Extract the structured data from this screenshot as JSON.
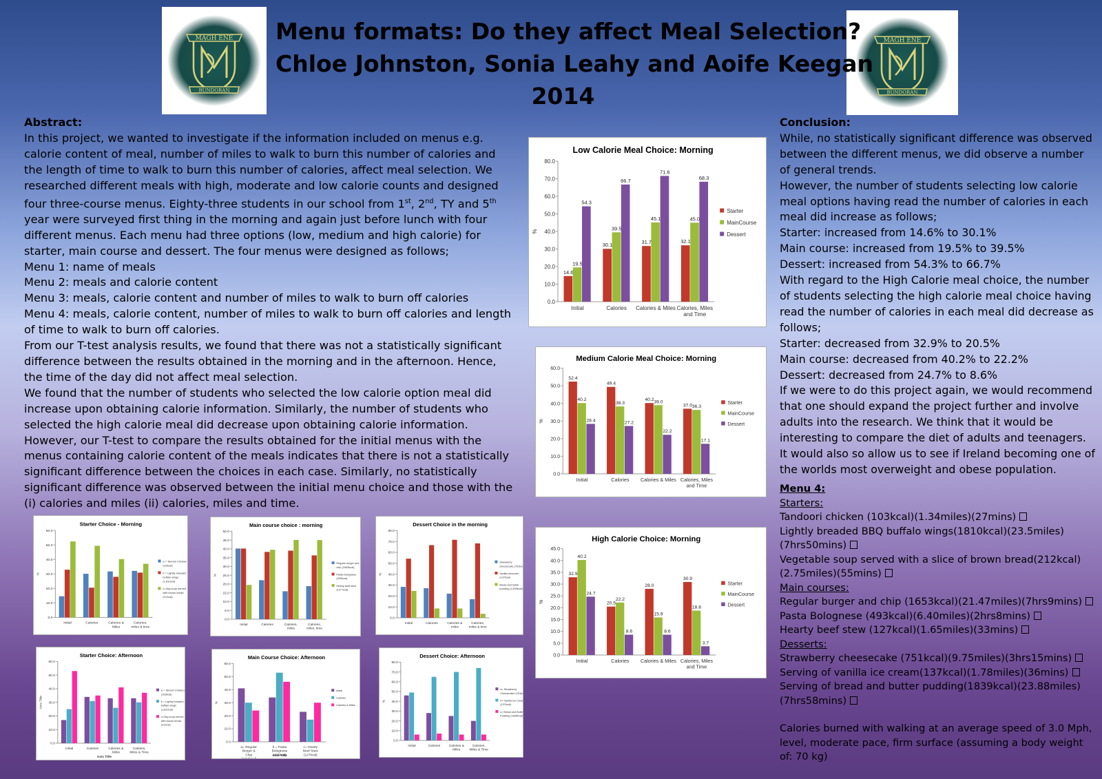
{
  "title": {
    "line1": "Menu formats: Do they affect Meal Selection?",
    "line2": "Chloe Johnston, Sonia Leahy and Aoife Keegan",
    "line3": "2014"
  },
  "logo": {
    "top_text": "MAGH ENE",
    "bottom_text": "BUNDORAN"
  },
  "abstract": {
    "heading": "Abstract:",
    "p1a": "In this project, we wanted to investigate if the information included on menus e.g. calorie content of meal, number of miles to walk to burn this number of calories and the length of time to walk to burn this number of calories, affect meal selection. We researched different meals with high, moderate and low calorie counts and designed four three-course menus. Eighty-three students in our school from 1",
    "sup1": "st",
    "p1b": ", 2",
    "sup2": "nd",
    "p1c": ", TY and 5",
    "sup3": "th",
    "p1d": " year were surveyed first thing in the morning and again just before lunch with four different menus. Each menu had three options (low, medium and high calorie) for starter, main course and dessert.  The four menus were designed as follows;",
    "menu1": "Menu 1:  name of meals",
    "menu2": "Menu 2:  meals and calorie content",
    "menu3": "Menu 3:  meals, calorie content and number of miles to walk to burn off calories",
    "menu4": "Menu 4:  meals, calorie content, number of miles to walk to burn off calories and length of time to walk to burn off calories.",
    "p2": "From our T-test analysis results, we found that there was not a statistically significant difference between the results obtained in the morning and in the afternoon. Hence, the time of the day did not affect meal selection.",
    "p3": "We found that the number of students who selected the low calorie option meal did increase upon obtaining calorie information.  Similarly, the number of students who selected the high calorie meal did decrease upon obtaining calorie information.  However, our T-test to compare the results obtained for the initial menus with the menus containing calorie content of the meals indicates that there is not a statistically significant difference between the choices in each case.  Similarly, no statistically significant difference was observed between the initial menu choice and those with the (i) calories and miles (ii) calories, miles and time."
  },
  "conclusion": {
    "heading": "Conclusion:",
    "p1": "While, no statistically significant difference was observed between the different menus, we did observe a number of general trends.",
    "p2": "However, the number of students selecting low calorie meal options having read the number of calories in each meal did increase as follows;",
    "l1": "Starter:  increased from 14.6% to 30.1%",
    "l2": "Main course:  increased from 19.5% to 39.5%",
    "l3": "Dessert:  increased from 54.3% to 66.7%",
    "p3": "With regard to the High Calorie meal choice, the number of students selecting the high calorie meal choice having read the number of calories in each meal did decrease as follows;",
    "l4": "Starter:  decreased from 32.9% to 20.5%",
    "l5": "Main course:  decreased from 40.2% to 22.2%",
    "l6": "Dessert:  decreased from 24.7% to 8.6%",
    "p4": "If we were to do this project again, we would recommend that one should expand the project further and involve adults into the research. We think that it would be interesting to compare the diet of adults and teenagers. It would also so allow us to see if Ireland becoming one of the worlds most overweight and obese population."
  },
  "menu4": {
    "heading": "Menu 4:",
    "starters_heading": "Starters:",
    "starters": [
      "Tandoori chicken  (103kcal)(1.34miles)(27mins)",
      "Lightly breaded BBQ buffalo wings(1810kcal)(23.5miles)(7hrs50mins)",
      "Vegetable soup served with a slice of brown bread(212kcal)(2.75miles)(55mins)"
    ],
    "mains_heading": "Main courses:",
    "mains": [
      "Regular burger and chip (1653kcal)(21.47miles)(7hrs9mins)",
      "Pasta Bolognese (493kcal)(6.40miles)(2hrs8mins)",
      "Hearty beef stew (127kcal)(1.65miles)(33mins)"
    ],
    "desserts_heading": "Desserts:",
    "desserts": [
      "Strawberry cheesecake (751kcal)(9.75miles)(3hrs15mins)",
      "Serving of vanilla ice cream(137kcal)(1.78miles)(36mins)",
      "Serving of bread and butter pudding(1839kcal)(23.88miles)(7hrs58mins)"
    ],
    "footnote": "Calories burned with walking at an average speed of 3.0 Mph, level, moderate pace, firm surface (assuming a body weight of: 70 kg)"
  },
  "colors": {
    "red": "#c0392b",
    "green": "#9bbb3b",
    "purple": "#7b4f9e",
    "blue": "#4f81bd",
    "cyan": "#4bacc6",
    "pink": "#ff2a9f"
  },
  "chart_data": [
    {
      "id": "low",
      "type": "bar",
      "title": "Low Calorie Meal Choice:  Morning",
      "ylabel": "%",
      "ylim": [
        0,
        80
      ],
      "yticks": [
        "0.0",
        "10.0",
        "20.0",
        "30.0",
        "40.0",
        "50.0",
        "60.0",
        "70.0",
        "80.0"
      ],
      "categories": [
        "Initial",
        "Calories",
        "Calories & Miles",
        "Calories, Miles and Time"
      ],
      "series": [
        {
          "name": "Starter",
          "color": "#c0392b",
          "values": [
            14.6,
            30.1,
            31.7,
            32.1
          ],
          "labels": [
            "14.6",
            "30.1",
            "31.7",
            "32.1"
          ]
        },
        {
          "name": "MainCourse",
          "color": "#9bbb3b",
          "values": [
            19.5,
            39.5,
            45.1,
            45.0
          ],
          "labels": [
            "19.5",
            "39.5",
            "45.1",
            "45.0"
          ]
        },
        {
          "name": "Dessert",
          "color": "#7b4f9e",
          "values": [
            54.3,
            66.7,
            71.6,
            68.3
          ],
          "labels": [
            "54.3",
            "66.7",
            "71.6",
            "68.3"
          ]
        }
      ],
      "legend": "right"
    },
    {
      "id": "medium",
      "type": "bar",
      "title": "Medium Calorie Meal Choice:  Morning",
      "ylabel": "%",
      "ylim": [
        0,
        60
      ],
      "yticks": [
        "0.0",
        "10.0",
        "20.0",
        "30.0",
        "40.0",
        "50.0",
        "60.0"
      ],
      "categories": [
        "Initial",
        "Calories",
        "Calories & Miles",
        "Calories, Miles and Time"
      ],
      "series": [
        {
          "name": "Starter",
          "color": "#c0392b",
          "values": [
            52.4,
            49.4,
            40.2,
            37.0
          ],
          "labels": [
            "52.4",
            "49.4",
            "40.2",
            "37.0"
          ]
        },
        {
          "name": "MainCourse",
          "color": "#9bbb3b",
          "values": [
            40.2,
            38.3,
            39.0,
            36.3
          ],
          "labels": [
            "40.2",
            "38.3",
            "39.0",
            "36.3"
          ]
        },
        {
          "name": "Dessert",
          "color": "#7b4f9e",
          "values": [
            28.4,
            27.2,
            22.2,
            17.1
          ],
          "labels": [
            "28.4",
            "27.2",
            "22.2",
            "17.1"
          ]
        }
      ],
      "legend": "right"
    },
    {
      "id": "high",
      "type": "bar",
      "title": "High Calorie Choice:  Morning",
      "ylabel": "%",
      "ylim": [
        0,
        45
      ],
      "yticks": [
        "0.0",
        "5.0",
        "10.0",
        "15.0",
        "20.0",
        "25.0",
        "30.0",
        "35.0",
        "40.0",
        "45.0"
      ],
      "categories": [
        "Initial",
        "Calories",
        "Calories & Miles",
        "Calories, Miles and Time"
      ],
      "series": [
        {
          "name": "Starter",
          "color": "#c0392b",
          "values": [
            32.9,
            20.5,
            28.0,
            30.9
          ],
          "labels": [
            "32.9",
            "20.5",
            "28.0",
            "30.9"
          ]
        },
        {
          "name": "MainCourse",
          "color": "#9bbb3b",
          "values": [
            40.2,
            22.2,
            15.9,
            18.8
          ],
          "labels": [
            "40.2",
            "22.2",
            "15.9",
            "18.8"
          ]
        },
        {
          "name": "Dessert",
          "color": "#7b4f9e",
          "values": [
            24.7,
            8.6,
            8.6,
            3.7
          ],
          "labels": [
            "24.7",
            "8.6",
            "8.6",
            "3.7"
          ]
        }
      ],
      "legend": "right"
    },
    {
      "id": "starter_morning",
      "type": "bar",
      "title": "Starter Choice - Morning",
      "ylabel": "%",
      "ylim": [
        0,
        60
      ],
      "yticks": [
        "0.0",
        "10.0",
        "20.0",
        "30.0",
        "40.0",
        "50.0",
        "60.0"
      ],
      "categories": [
        "Initial",
        "Calories",
        "Calories & Miles",
        "Calories, miles & time"
      ],
      "series": [
        {
          "name": "a = Tandori Chicken (103cal)",
          "color": "#4f81bd",
          "values": [
            14.6,
            30.1,
            31.7,
            32.1
          ]
        },
        {
          "name": "b = Lightly breaded buffalo wings (1,810cal)",
          "color": "#c0392b",
          "values": [
            32.9,
            20.5,
            28.0,
            30.9
          ]
        },
        {
          "name": "c=Veg soup served with brown bread (212cal)",
          "color": "#9bbb3b",
          "values": [
            52.4,
            49.4,
            40.2,
            37.0
          ]
        }
      ],
      "legend": "right"
    },
    {
      "id": "main_morning",
      "type": "bar",
      "title": "Main course choice : morning",
      "ylabel": "%",
      "ylim": [
        0,
        50
      ],
      "yticks": [
        "0.0",
        "5.0",
        "10.0",
        "15.0",
        "20.0",
        "25.0",
        "30.0",
        "35.0",
        "40.0",
        "45.0",
        "50.0"
      ],
      "categories": [
        "Initial",
        "Calories",
        "Calories, miles",
        "Calories, miles, time"
      ],
      "series": [
        {
          "name": "Regular burger and chip (1653kcal)",
          "color": "#4f81bd",
          "values": [
            40.2,
            22.2,
            15.9,
            18.8
          ]
        },
        {
          "name": "Pasta bolognese (493kcal)",
          "color": "#c0392b",
          "values": [
            40.2,
            38.3,
            39.0,
            36.3
          ]
        },
        {
          "name": "Hearty beef stew (127 kcal)",
          "color": "#9bbb3b",
          "values": [
            19.5,
            39.5,
            45.1,
            45.0
          ]
        }
      ],
      "legend": "right"
    },
    {
      "id": "dessert_morning",
      "type": "bar",
      "title": "Dessert Choice in the morning",
      "ylabel": "%",
      "ylim": [
        0,
        80
      ],
      "yticks": [
        "0.0",
        "10.0",
        "20.0",
        "30.0",
        "40.0",
        "50.0",
        "60.0",
        "70.0",
        "80.0"
      ],
      "categories": [
        "Initial",
        "Calories",
        "Calories & miles",
        "Calories, miles & time"
      ],
      "series": [
        {
          "name": "Strawberry cheesecake (751kcal)",
          "color": "#4f81bd",
          "values": [
            28.4,
            27.2,
            22.2,
            17.1
          ]
        },
        {
          "name": "Vanilla icecream (137kcal)",
          "color": "#c0392b",
          "values": [
            54.3,
            66.7,
            71.6,
            68.3
          ]
        },
        {
          "name": "Bread and butter pudding (1,839kcal)",
          "color": "#9bbb3b",
          "values": [
            24.7,
            8.6,
            8.6,
            3.7
          ]
        }
      ],
      "legend": "right"
    },
    {
      "id": "starter_afternoon",
      "type": "bar",
      "title": "Starter Choice:  Afternoon",
      "ylabel": "Axis Title",
      "xlabel": "Axis Title",
      "ylim": [
        0,
        60
      ],
      "yticks": [
        "0.0",
        "10.0",
        "20.0",
        "30.0",
        "40.0",
        "50.0",
        "60.0"
      ],
      "categories": [
        "Initial",
        "Calories",
        "Calories & Miles",
        "Calories, Miles & Time"
      ],
      "series": [
        {
          "name": "a = Tandori Chicken (103kcal)",
          "color": "#7b4f9e",
          "values": [
            17,
            34,
            33,
            33
          ]
        },
        {
          "name": "b = Lightly breaded buffalo wings (1,810cal)",
          "color": "#4bacc6",
          "values": [
            25,
            31,
            26,
            30
          ]
        },
        {
          "name": "c=Veg soup served with brown bread (212cal)",
          "color": "#ff2a9f",
          "values": [
            53,
            35,
            41,
            37
          ]
        }
      ],
      "legend": "right"
    },
    {
      "id": "main_afternoon",
      "type": "bar",
      "title": "Main Course Choice:  Afternoon",
      "ylabel": "%",
      "xlabel": "Axis Title",
      "ylim": [
        0,
        60
      ],
      "yticks": [
        "0.0",
        "10.0",
        "20.0",
        "30.0",
        "40.0",
        "50.0",
        "60.0"
      ],
      "categories": [
        "a= Regular Burger & Chip (1653kcal)",
        "b = Pasta Bolognese (493kcal)",
        "c= Hearty Beef Stew (127kcal)"
      ],
      "series": [
        {
          "name": "Initial",
          "color": "#7b4f9e",
          "values": [
            41,
            34,
            23
          ]
        },
        {
          "name": "Calories",
          "color": "#4bacc6",
          "values": [
            30,
            53,
            17
          ]
        },
        {
          "name": "Calories & Miles",
          "color": "#ff2a9f",
          "values": [
            24,
            46,
            30
          ]
        }
      ],
      "legend": "right"
    },
    {
      "id": "dessert_afternoon",
      "type": "bar",
      "title": "Dessert Choice:  Afternoon",
      "ylabel": "%",
      "ylim": [
        0,
        80
      ],
      "yticks": [
        "0.0",
        "10.0",
        "20.0",
        "30.0",
        "40.0",
        "50.0",
        "60.0",
        "70.0",
        "80.0"
      ],
      "categories": [
        "Initial",
        "Calories",
        "Calories & Miles",
        "Calories, Miles & Time"
      ],
      "series": [
        {
          "name": "a= Strawberry Cheesecake (751kcal)",
          "color": "#7b4f9e",
          "values": [
            46,
            28,
            25,
            20
          ]
        },
        {
          "name": "b= Vanilla Ice Cream (137kcal)",
          "color": "#4bacc6",
          "values": [
            49,
            65,
            70,
            74
          ]
        },
        {
          "name": "c= Bread and Butter Pudding (1839kcal)",
          "color": "#ff2a9f",
          "values": [
            6,
            7,
            6,
            6
          ]
        }
      ],
      "legend": "right"
    }
  ]
}
